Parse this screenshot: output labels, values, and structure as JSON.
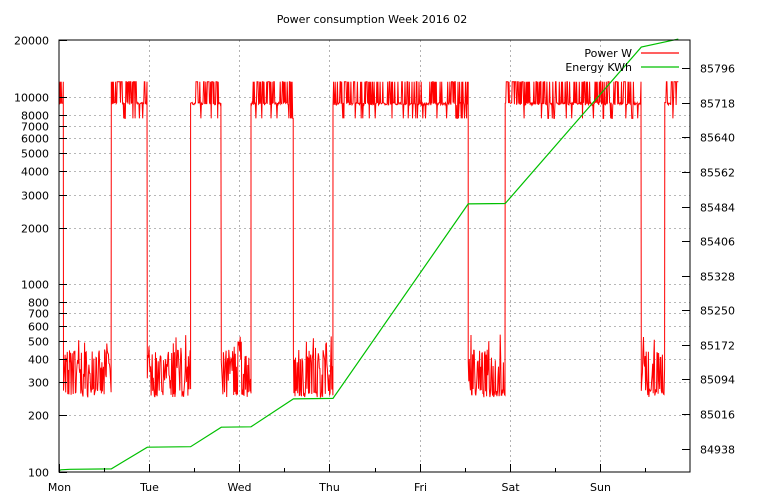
{
  "chart_data": {
    "type": "line",
    "title": "Power consumption Week 2016 02",
    "xlabel": "",
    "ylabel": "",
    "x_ticks": [
      "Mon",
      "Tue",
      "Wed",
      "Thu",
      "Fri",
      "Sat",
      "Sun"
    ],
    "xlim": [
      0,
      7
    ],
    "y_scale": "log",
    "ylim": [
      100,
      20000
    ],
    "y_ticks": [
      100,
      200,
      300,
      400,
      500,
      600,
      700,
      800,
      1000,
      2000,
      3000,
      4000,
      5000,
      6000,
      7000,
      8000,
      10000,
      20000
    ],
    "y2lim": [
      84885,
      85860
    ],
    "y2_ticks": [
      84938,
      85016,
      85094,
      85172,
      85250,
      85328,
      85406,
      85484,
      85562,
      85640,
      85718,
      85796
    ],
    "grid": true,
    "legend_position": "top-right",
    "series": [
      {
        "name": "Power W",
        "axis": "left",
        "color": "#ff0000",
        "segments": [
          {
            "x": [
              0.0,
              0.05
            ],
            "level": "high"
          },
          {
            "x": [
              0.05,
              0.58
            ],
            "level": "low"
          },
          {
            "x": [
              0.58,
              0.98
            ],
            "level": "high"
          },
          {
            "x": [
              0.98,
              1.46
            ],
            "level": "low"
          },
          {
            "x": [
              1.46,
              1.8
            ],
            "level": "high"
          },
          {
            "x": [
              1.8,
              2.13
            ],
            "level": "low"
          },
          {
            "x": [
              2.13,
              2.6
            ],
            "level": "high"
          },
          {
            "x": [
              2.6,
              3.04
            ],
            "level": "low"
          },
          {
            "x": [
              3.04,
              4.54
            ],
            "level": "high"
          },
          {
            "x": [
              4.54,
              4.95
            ],
            "level": "low"
          },
          {
            "x": [
              4.95,
              6.46
            ],
            "level": "high"
          },
          {
            "x": [
              6.46,
              6.72
            ],
            "level": "low"
          },
          {
            "x": [
              6.72,
              6.87
            ],
            "level": "high"
          }
        ],
        "high_band": [
          9000,
          12000
        ],
        "low_band": [
          250,
          500
        ]
      },
      {
        "name": "Energy KWh",
        "axis": "right",
        "color": "#00c000",
        "x": [
          0.0,
          0.02,
          0.12,
          0.58,
          0.98,
          1.46,
          1.8,
          2.13,
          2.6,
          3.04,
          4.54,
          4.95,
          6.46,
          6.87
        ],
        "y": [
          84888,
          84890,
          84891,
          84892,
          84941,
          84942,
          84986,
          84987,
          85050,
          85051,
          85490,
          85491,
          85844,
          85862
        ]
      }
    ]
  }
}
